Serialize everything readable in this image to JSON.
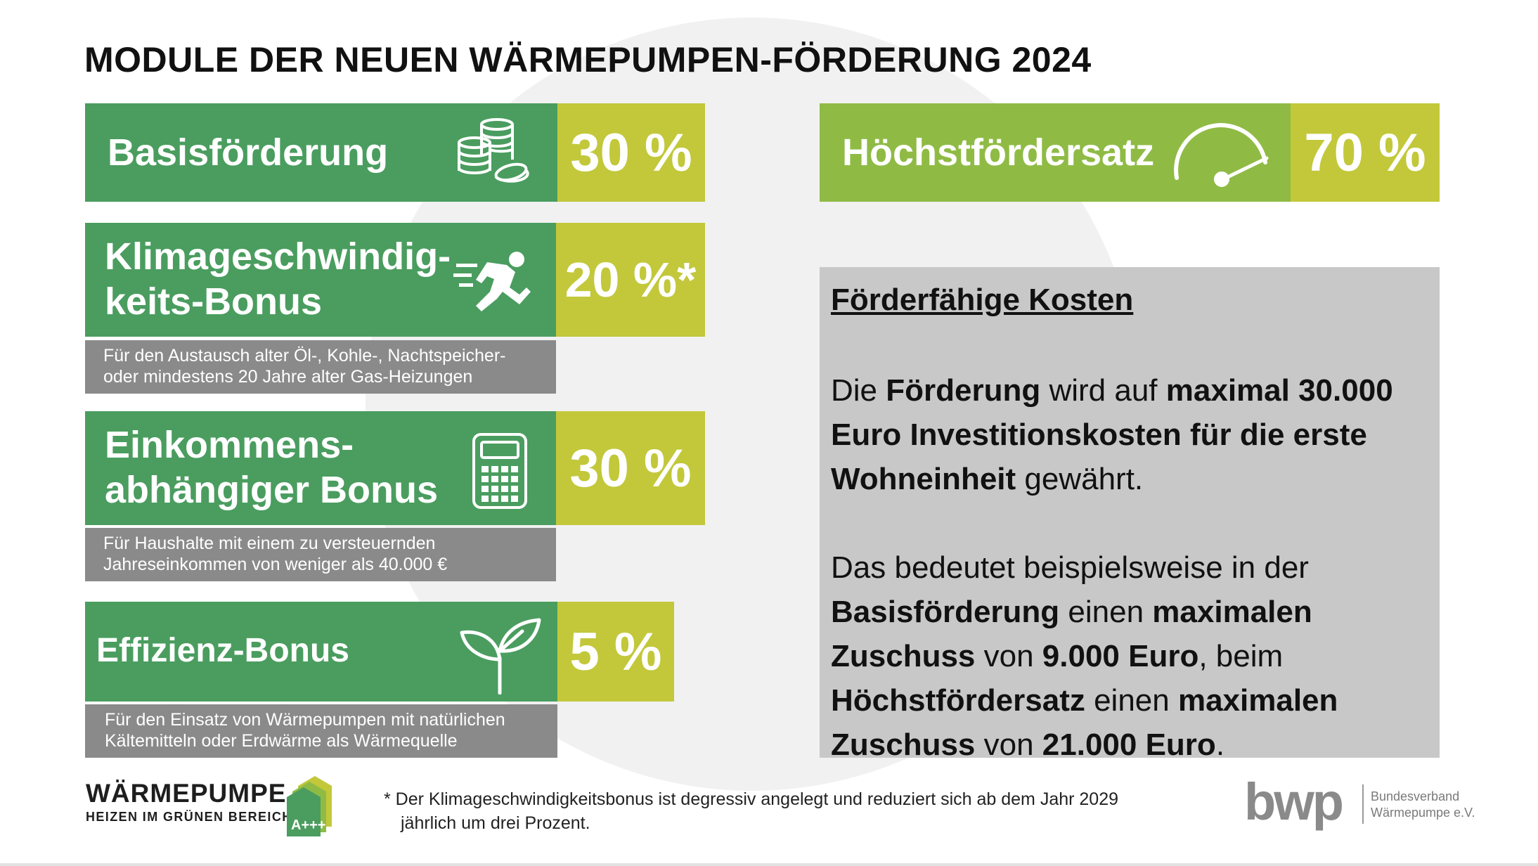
{
  "title": "MODULE DER NEUEN WÄRMEPUMPEN-FÖRDERUNG 2024",
  "modules": {
    "basis": {
      "label": "Basisförderung",
      "percent": "30 %",
      "icon": "coins-icon"
    },
    "klima": {
      "label_line1": "Klimageschwindig-",
      "label_line2": "keits-Bonus",
      "percent": "20 %*",
      "icon": "runner-icon",
      "note_line1": "Für den Austausch alter Öl-, Kohle-, Nachtspeicher-",
      "note_line2": "oder mindestens 20 Jahre alter Gas-Heizungen"
    },
    "einkommen": {
      "label_line1": "Einkommens-",
      "label_line2": "abhängiger Bonus",
      "percent": "30 %",
      "icon": "calculator-icon",
      "note_line1": "Für Haushalte mit einem zu versteuernden",
      "note_line2": "Jahreseinkommen von weniger als 40.000 €"
    },
    "effizienz": {
      "label": "Effizienz-Bonus",
      "percent": "5 %",
      "icon": "sprout-icon",
      "note_line1": "Für den Einsatz von Wärmepumpen mit natürlichen",
      "note_line2": "Kältemitteln oder Erdwärme als Wärmequelle"
    },
    "hoechst": {
      "label": "Höchstfördersatz",
      "percent": "70 %",
      "icon": "gauge-icon"
    }
  },
  "panel": {
    "heading": "Förderfähige Kosten",
    "p1": {
      "l1a": "Die ",
      "l1b": "Förderung",
      "l1c": " wird auf ",
      "l1d": "maximal 30.000",
      "l2": "Euro Investitionskosten für die erste",
      "l3a": "Wohneinheit",
      "l3b": " gewährt."
    },
    "p2": {
      "l1": "Das bedeutet beispielsweise in der",
      "l2a": "Basisförderung",
      "l2b": " einen ",
      "l2c": "maximalen",
      "l3a": "Zuschuss",
      "l3b": " von ",
      "l3c": "9.000 Euro",
      "l3d": ", beim",
      "l4a": "Höchstfördersatz",
      "l4b": " einen ",
      "l4c": "maximalen",
      "l5a": "Zuschuss",
      "l5b": " von ",
      "l5c": "21.000 Euro",
      "l5d": "."
    }
  },
  "footnote": {
    "line1": "* Der Klimageschwindigkeitsbonus ist degressiv angelegt und reduziert sich ab dem Jahr 2029",
    "line2": "jährlich um drei Prozent."
  },
  "logo_waermepumpe": {
    "main": "WÄRMEPUMPE",
    "sub": "HEIZEN IM GRÜNEN BEREICH",
    "badge": "A+++"
  },
  "logo_bwp": {
    "mark": "bwp",
    "line1": "Bundesverband",
    "line2": "Wärmepumpe e.V."
  },
  "colors": {
    "dark_green": "#4a9d5f",
    "lime": "#c2c83a",
    "mid_green": "#8fbb45",
    "grey": "#8a8a8a",
    "panel_grey": "#c8c8c8"
  }
}
